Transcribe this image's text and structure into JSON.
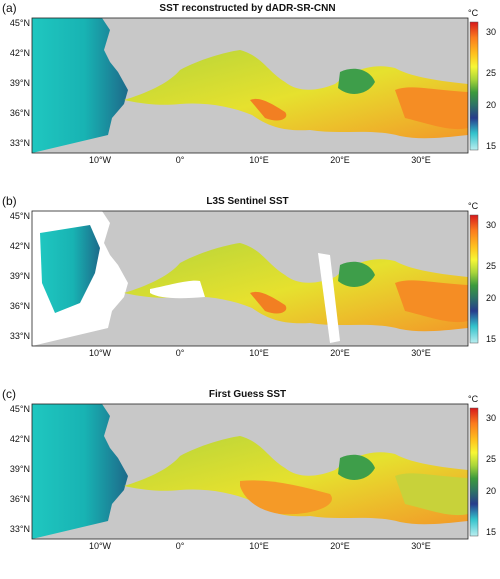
{
  "lat_labels": [
    "45°N",
    "42°N",
    "39°N",
    "36°N",
    "33°N"
  ],
  "lon_labels": [
    "10°W",
    "0°",
    "10°E",
    "20°E",
    "30°E"
  ],
  "colorbar": {
    "unit": "°C",
    "ticks": [
      "30",
      "25",
      "20",
      "15"
    ],
    "colors": [
      "#d7191c",
      "#fb7b1e",
      "#ffc21e",
      "#f7f735",
      "#a8d53a",
      "#3c9a3c",
      "#2d7266",
      "#273c8c",
      "#33c3cc",
      "#b9eef0"
    ]
  },
  "land_color": "#c8c8c8",
  "panels": [
    {
      "label": "(a)",
      "title": "SST reconstructed by dADR-SR-CNN"
    },
    {
      "label": "(b)",
      "title": "L3S Sentinel SST"
    },
    {
      "label": "(c)",
      "title": "First Guess SST"
    }
  ]
}
